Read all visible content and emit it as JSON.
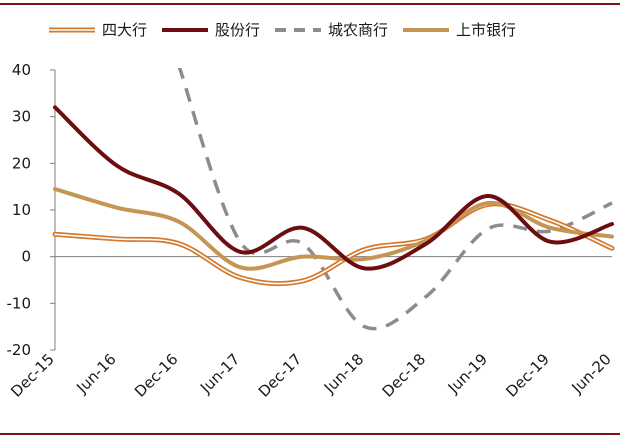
{
  "colors": {
    "rule": "#7a1216",
    "axis": "#7f7f7f"
  },
  "chart_data": {
    "type": "line",
    "x": [
      "Dec-15",
      "Jun-16",
      "Dec-16",
      "Jun-17",
      "Dec-17",
      "Jun-18",
      "Dec-18",
      "Jun-19",
      "Dec-19",
      "Jun-20"
    ],
    "ylim": [
      -20,
      40
    ],
    "yticks": [
      -20,
      -10,
      0,
      10,
      20,
      30,
      40
    ],
    "legend_position": "top",
    "grid": false,
    "series": [
      {
        "name": "四大行",
        "style": "double",
        "color": "#d4782c",
        "values": [
          4.8,
          3.8,
          2.8,
          -4.5,
          -5.2,
          1.5,
          3.8,
          11.2,
          7.8,
          1.8
        ]
      },
      {
        "name": "股份行",
        "style": "solid",
        "color": "#6b0d11",
        "values": [
          32.0,
          19.5,
          13.5,
          1.0,
          6.2,
          -2.5,
          2.8,
          13.0,
          3.2,
          7.0
        ]
      },
      {
        "name": "城农商行",
        "style": "dashed",
        "color": "#8c8c8c",
        "values": [
          null,
          null,
          41.0,
          3.0,
          2.8,
          -15.0,
          -8.5,
          6.0,
          5.5,
          11.5
        ]
      },
      {
        "name": "上市银行",
        "style": "solid",
        "color": "#c49553",
        "values": [
          14.5,
          10.5,
          7.5,
          -2.3,
          0.0,
          -0.5,
          3.5,
          11.5,
          6.2,
          4.3
        ]
      }
    ]
  }
}
